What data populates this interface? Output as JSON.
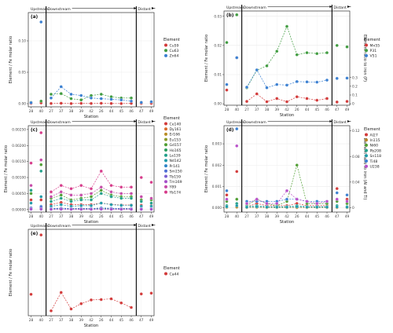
{
  "chart_data": [
    {
      "type": "line",
      "panel_label": "(a)",
      "ylabel": "Element / Fe molar ratio",
      "ylim": [
        -0.005,
        0.145
      ],
      "yticks": [
        0,
        0.05,
        0.1
      ],
      "ytick_labels": [
        "0.00",
        "0.05",
        "0.10"
      ],
      "xlabel": "Station",
      "categories": [
        "28",
        "40",
        "27",
        "37",
        "38",
        "39",
        "42",
        "26",
        "44",
        "45",
        "46",
        "47",
        "49"
      ],
      "region_labels": [
        "Upstream",
        "Downstream",
        "Distant"
      ],
      "legend_title": "Element",
      "series": [
        {
          "name": "Cu59",
          "color": "#d23a3a",
          "values": [
            0.0004,
            0.0012,
            0.0003,
            0.0006,
            0.0002,
            0.0005,
            0.0003,
            0.0006,
            0.0003,
            0.0002,
            0.0004,
            0.0004,
            0.0005
          ]
        },
        {
          "name": "Cu63",
          "color": "#3f9b3f",
          "values": [
            0.002,
            0.004,
            0.015,
            0.016,
            0.008,
            0.006,
            0.013,
            0.015,
            0.011,
            0.009,
            0.009,
            0.002,
            0.003
          ]
        },
        {
          "name": "Zn64",
          "color": "#3a7fd1",
          "values": [
            0.0015,
            0.13,
            0.009,
            0.027,
            0.015,
            0.013,
            0.009,
            0.008,
            0.007,
            0.006,
            0.004,
            0.002,
            0.003
          ]
        }
      ]
    },
    {
      "type": "line",
      "panel_label": "(b)",
      "ylabel": "Element / Fe molar ratio",
      "ylabel2": "Element ratio to iron (P)",
      "ylim": [
        -0.0005,
        0.0318
      ],
      "yticks": [
        0,
        0.01,
        0.02,
        0.03
      ],
      "ytick_labels": [
        "0.00",
        "0.01",
        "0.02",
        "0.03"
      ],
      "ylim2": [
        -0.0167,
        1.06
      ],
      "yticks2": [
        0,
        0.1,
        0.2,
        0.3
      ],
      "ytick_labels2": [
        "0",
        "0.1",
        "0.2",
        "0.3"
      ],
      "xlabel": "Station",
      "categories": [
        "28",
        "40",
        "27",
        "37",
        "38",
        "39",
        "42",
        "26",
        "44",
        "45",
        "46",
        "47",
        "49"
      ],
      "region_labels": [
        "Upstream",
        "Downstream",
        "Distant"
      ],
      "legend_title": "Element",
      "series": [
        {
          "name": "Mn55",
          "color": "#d23a3a",
          "values": [
            0.0047,
            0.0158,
            0.0008,
            0.0034,
            0.0007,
            0.0018,
            0.0007,
            0.0024,
            0.0018,
            0.0012,
            0.0018,
            0.0006,
            0.0008
          ]
        },
        {
          "name": "P31",
          "color": "#3f9b3f",
          "values": [
            0.021,
            0.0305,
            0.0055,
            0.0115,
            0.013,
            0.018,
            0.0265,
            0.0168,
            0.0175,
            0.0172,
            0.0175,
            0.02,
            0.0195
          ]
        },
        {
          "name": "V51",
          "color": "#3a7fd1",
          "values": [
            0.0066,
            0.0158,
            0.0057,
            0.0116,
            0.0055,
            0.0066,
            0.0064,
            0.0076,
            0.0075,
            0.0074,
            0.0081,
            0.0087,
            0.0088
          ]
        }
      ]
    },
    {
      "type": "line",
      "panel_label": "(c)",
      "ylabel": "Element / Fe molar ratio",
      "ylim": [
        -8e-05,
        0.00262
      ],
      "yticks": [
        0,
        0.0005,
        0.001,
        0.0015,
        0.002,
        0.0025
      ],
      "ytick_labels": [
        "0.00000",
        "0.00050",
        "0.00100",
        "0.00150",
        "0.00200",
        "0.00250"
      ],
      "xlabel": "Station",
      "categories": [
        "28",
        "40",
        "27",
        "37",
        "38",
        "39",
        "42",
        "26",
        "44",
        "45",
        "46",
        "47",
        "49"
      ],
      "region_labels": [
        "Upstream",
        "Downstream",
        "Distant"
      ],
      "legend_title": "Element",
      "series": [
        {
          "name": "Ce140",
          "color": "#d23a3a",
          "values": [
            0.0003,
            0.0003,
            0.00015,
            0.00022,
            0.00015,
            0.00015,
            0.00015,
            0.0002,
            0.00016,
            0.00014,
            0.00014,
            0.00013,
            0.00012
          ]
        },
        {
          "name": "Dy161",
          "color": "#d96a2b",
          "values": [
            5e-05,
            8e-05,
            3e-05,
            4e-05,
            3e-05,
            3e-05,
            3e-05,
            4e-05,
            3e-05,
            3e-05,
            3e-05,
            3e-05,
            3e-05
          ]
        },
        {
          "name": "Er166",
          "color": "#b98d24",
          "values": [
            4e-05,
            6e-05,
            2e-05,
            3e-05,
            2e-05,
            2e-05,
            2e-05,
            3e-05,
            2e-05,
            2e-05,
            2e-05,
            2e-05,
            2e-05
          ]
        },
        {
          "name": "Eu153",
          "color": "#8a9a2a",
          "values": [
            2e-05,
            3e-05,
            1e-05,
            2e-05,
            1e-05,
            1e-05,
            1e-05,
            2e-05,
            1e-05,
            1e-05,
            1e-05,
            1e-05,
            1e-05
          ]
        },
        {
          "name": "Gd157",
          "color": "#4f9e32",
          "values": [
            0.0005,
            0.0014,
            0.00035,
            0.00045,
            0.0003,
            0.00035,
            0.0004,
            0.0006,
            0.00045,
            0.0004,
            0.0004,
            0.0003,
            0.0003
          ]
        },
        {
          "name": "Ho165",
          "color": "#2d9e5f",
          "values": [
            3e-05,
            5e-05,
            2e-05,
            3e-05,
            2e-05,
            2e-05,
            2e-05,
            3e-05,
            2e-05,
            2e-05,
            2e-05,
            2e-05,
            2e-05
          ]
        },
        {
          "name": "La139",
          "color": "#22a08a",
          "values": [
            0.0006,
            0.0012,
            0.00025,
            0.00035,
            0.00025,
            0.0003,
            0.0003,
            0.0005,
            0.0004,
            0.00035,
            0.00035,
            0.00025,
            0.0002
          ]
        },
        {
          "name": "Nd142",
          "color": "#1e9aa8",
          "values": [
            0.0002,
            0.0004,
            0.0001,
            0.00015,
            0.0001,
            0.00012,
            0.00012,
            0.0002,
            0.00015,
            0.00013,
            0.00013,
            0.0001,
            0.0001
          ]
        },
        {
          "name": "Pr141",
          "color": "#2f86c8",
          "values": [
            5e-05,
            0.0001,
            3e-05,
            4e-05,
            3e-05,
            3e-05,
            3e-05,
            5e-05,
            4e-05,
            3e-05,
            3e-05,
            3e-05,
            3e-05
          ]
        },
        {
          "name": "Sm150",
          "color": "#4f6fd4",
          "values": [
            4e-05,
            8e-05,
            2e-05,
            3e-05,
            2e-05,
            2e-05,
            2e-05,
            4e-05,
            3e-05,
            2e-05,
            2e-05,
            2e-05,
            2e-05
          ]
        },
        {
          "name": "Tb159",
          "color": "#7d5fd1",
          "values": [
            1e-05,
            2e-05,
            1e-05,
            1e-05,
            1e-05,
            1e-05,
            1e-05,
            1e-05,
            1e-05,
            1e-05,
            1e-05,
            1e-05,
            1e-05
          ]
        },
        {
          "name": "Tm169",
          "color": "#a64fc9",
          "values": [
            1e-05,
            1e-05,
            5e-06,
            1e-05,
            5e-06,
            5e-06,
            5e-06,
            1e-05,
            5e-06,
            5e-06,
            5e-06,
            5e-06,
            5e-06
          ]
        },
        {
          "name": "Y89",
          "color": "#c64aa8",
          "values": [
            0.00075,
            0.00155,
            0.0004,
            0.00055,
            0.00045,
            0.00045,
            0.0005,
            0.0007,
            0.00055,
            0.0005,
            0.0005,
            0.0004,
            0.00035
          ]
        },
        {
          "name": "Yb174",
          "color": "#d63b8a",
          "values": [
            0.00145,
            0.0024,
            0.00055,
            0.00075,
            0.00065,
            0.00075,
            0.00065,
            0.0012,
            0.00075,
            0.0007,
            0.0007,
            0.001,
            0.00085
          ]
        }
      ]
    },
    {
      "type": "line",
      "panel_label": "(d)",
      "ylabel": "Element / Fe molar ratio",
      "ylabel2": "Element ratio to iron (Al and Ti)",
      "ylim": [
        -0.0002,
        0.00385
      ],
      "yticks": [
        0,
        0.001,
        0.002,
        0.003
      ],
      "ytick_labels": [
        "0.000",
        "0.001",
        "0.002",
        "0.003"
      ],
      "ylim2": [
        -0.0067,
        0.128
      ],
      "yticks2": [
        0,
        0.04,
        0.08,
        0.12
      ],
      "ytick_labels2": [
        "0",
        "0.04",
        "0.08",
        "0.12"
      ],
      "xlabel": "Station",
      "categories": [
        "28",
        "40",
        "27",
        "37",
        "38",
        "39",
        "42",
        "26",
        "44",
        "45",
        "46",
        "47",
        "49"
      ],
      "region_labels": [
        "Upstream",
        "Downstream",
        "Distant"
      ],
      "legend_title": "Element",
      "series": [
        {
          "name": "Al27",
          "color": "#d23a3a",
          "values": [
            0.0006,
            0.0017,
            5e-05,
            0.0002,
            0.0001,
            0.0001,
            0.0001,
            0.0002,
            0.0001,
            0.0001,
            0.0001,
            0.0009,
            0.0004
          ]
        },
        {
          "name": "In115",
          "color": "#b8862a",
          "values": [
            2e-05,
            3e-05,
            1e-05,
            2e-05,
            1e-05,
            1e-05,
            1e-05,
            1e-05,
            1e-05,
            1e-05,
            1e-05,
            1e-05,
            1e-05
          ]
        },
        {
          "name": "Ni60",
          "color": "#4f9e32",
          "values": [
            0.0003,
            0.0004,
            0.0001,
            0.0004,
            0.0002,
            0.0001,
            0.0003,
            0.002,
            0.0002,
            0.0002,
            0.0002,
            0.0003,
            0.0002
          ]
        },
        {
          "name": "Pb208",
          "color": "#22a08a",
          "values": [
            0.0001,
            0.0002,
            5e-05,
            0.0001,
            5e-05,
            5e-05,
            5e-05,
            0.0001,
            5e-05,
            5e-05,
            5e-05,
            0.0001,
            5e-05
          ]
        },
        {
          "name": "Sn118",
          "color": "#1e9aa8",
          "values": [
            5e-05,
            0.0001,
            3e-05,
            5e-05,
            3e-05,
            3e-05,
            3e-05,
            5e-05,
            3e-05,
            3e-05,
            3e-05,
            4e-05,
            3e-05
          ]
        },
        {
          "name": "Ti48",
          "color": "#3a7fd1",
          "values": [
            0.0008,
            0.0037,
            0.0003,
            0.0003,
            0.0003,
            0.0003,
            0.0004,
            0.0004,
            0.0003,
            0.0003,
            0.0003,
            0.0007,
            0.0006
          ]
        },
        {
          "name": "U238",
          "color": "#b84fc9",
          "values": [
            0.0004,
            0.0029,
            0.0002,
            0.0004,
            0.0002,
            0.0002,
            0.0008,
            0.0004,
            0.0003,
            0.0002,
            0.0003,
            0.0004,
            0.0003
          ]
        }
      ]
    },
    {
      "type": "line",
      "panel_label": "(e)",
      "ylabel": "Element / Fe molar ratio",
      "ylim": [
        -0.001,
        0.022
      ],
      "yticks": [],
      "ytick_labels": [],
      "xlabel": "Station",
      "categories": [
        "28",
        "40",
        "27",
        "37",
        "38",
        "39",
        "42",
        "26",
        "44",
        "45",
        "46",
        "47",
        "49"
      ],
      "region_labels": [
        "Upstream",
        "Downstream",
        "Distant"
      ],
      "legend_title": "Element",
      "series": [
        {
          "name": "Ca44",
          "color": "#d23a3a",
          "values": [
            0.0047,
            0.0205,
            0.0003,
            0.0052,
            0.0008,
            0.0022,
            0.0032,
            0.0033,
            0.0035,
            0.0024,
            0.0012,
            0.0048,
            0.005
          ]
        }
      ]
    }
  ]
}
